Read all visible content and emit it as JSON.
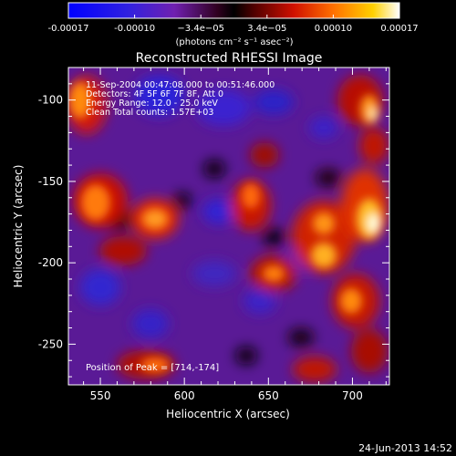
{
  "colorbar": {
    "ticks": [
      "-0.00017",
      "-0.00010",
      "−3.4e−05",
      "3.4e−05",
      "0.00010",
      "0.00017"
    ],
    "unit_label": "(photons cm⁻² s⁻¹ asec⁻²)",
    "range": [
      -0.00017,
      0.00017
    ]
  },
  "plot": {
    "title": "Reconstructed RHESSI Image",
    "xlabel": "Heliocentric X (arcsec)",
    "ylabel": "Heliocentric Y (arcsec)",
    "xticks": [
      "550",
      "600",
      "650",
      "700"
    ],
    "yticks": [
      "-100",
      "-150",
      "-200",
      "-250"
    ],
    "xlim": [
      531,
      722
    ],
    "ylim": [
      -275,
      -80
    ],
    "annotation_lines": [
      "11-Sep-2004 00:47:08.000 to 00:51:46.000",
      "Detectors: 4F 5F 6F 7F 8F, Att 0",
      "Energy Range: 12.0 - 25.0 keV",
      "Clean     Total counts: 1.57E+03"
    ],
    "peak_label": "Position of Peak = [714,-174]",
    "peak": [
      714,
      -174
    ]
  },
  "footer": {
    "timestamp": "24-Jun-2013 14:52"
  }
}
